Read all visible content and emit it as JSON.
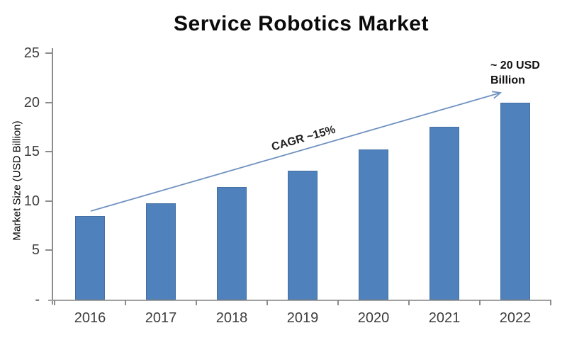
{
  "chart_data": {
    "type": "bar",
    "title": "Service Robotics Market",
    "categories": [
      "2016",
      "2017",
      "2018",
      "2019",
      "2020",
      "2021",
      "2022"
    ],
    "values": [
      8.5,
      9.8,
      11.4,
      13.1,
      15.2,
      17.5,
      20
    ],
    "xlabel": "",
    "ylabel": "Market Size (USD Billion)",
    "ylim": [
      0,
      25
    ],
    "ytick_labels": [
      "25",
      "20",
      "15",
      "10",
      "5",
      "-"
    ],
    "ytick_values": [
      25,
      20,
      15,
      10,
      5,
      0
    ],
    "grid": false,
    "legend": "none",
    "bar_color": "#4f81bd",
    "annotations": {
      "cagr_label": "CAGR ~15%",
      "end_label": "~ 20 USD Billion",
      "arrow_color": "#6f92c0"
    }
  }
}
